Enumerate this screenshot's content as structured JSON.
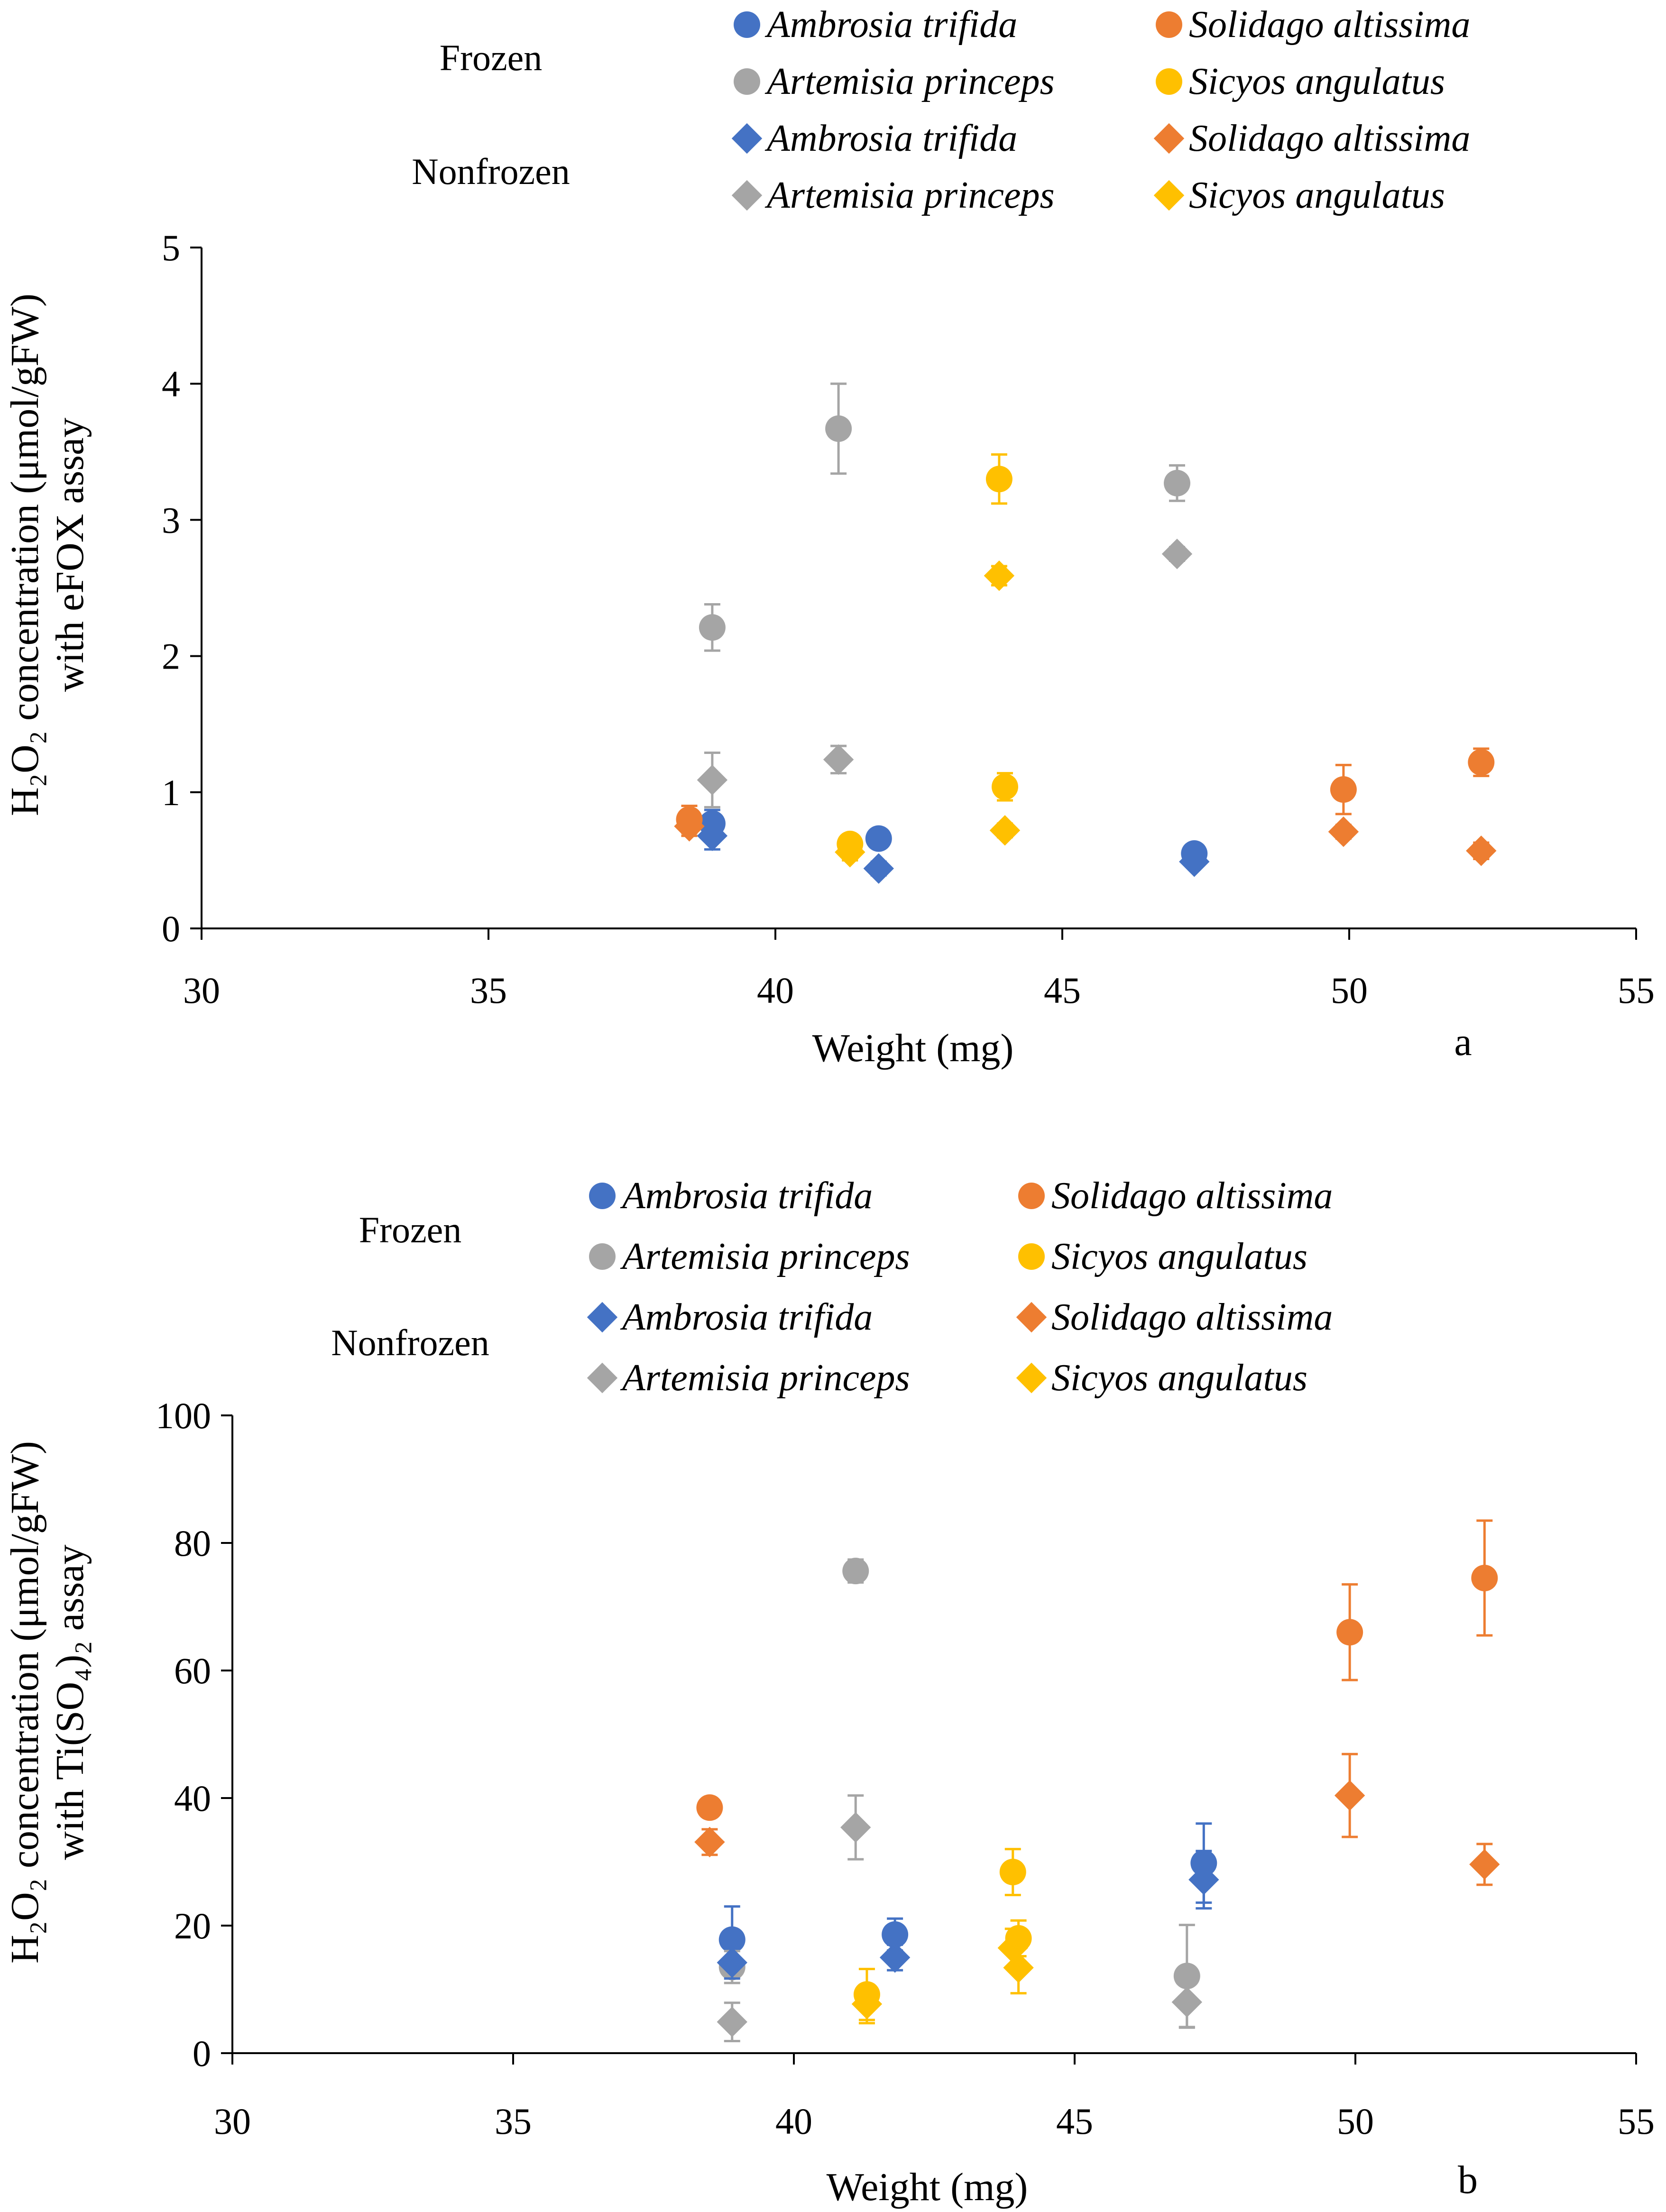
{
  "colors": {
    "Ambrosia trifida": "#4472C4",
    "Solidago altissima": "#ED7D31",
    "Artemisia princeps": "#A5A5A5",
    "Sicyos angulatus": "#FFC000"
  },
  "chart_data": [
    {
      "type": "scatter",
      "panel": "a",
      "xlabel": "Weight (mg)",
      "ylabel_line1": "H₂O₂ concentration (μmol/gFW)",
      "ylabel_line2": "with eFOX assay",
      "xlim": [
        30,
        55
      ],
      "ylim": [
        0,
        5
      ],
      "xticks": [
        30,
        35,
        40,
        45,
        50,
        55
      ],
      "yticks": [
        0,
        1,
        2,
        3,
        4,
        5
      ],
      "legend": {
        "groups": [
          "Frozen",
          "Nonfrozen"
        ],
        "entries": [
          {
            "label": "Ambrosia trifida",
            "group": "Frozen",
            "marker": "circle"
          },
          {
            "label": "Solidago altissima",
            "group": "Frozen",
            "marker": "circle"
          },
          {
            "label": "Artemisia princeps",
            "group": "Frozen",
            "marker": "circle"
          },
          {
            "label": "Sicyos angulatus",
            "group": "Frozen",
            "marker": "circle"
          },
          {
            "label": "Ambrosia trifida",
            "group": "Nonfrozen",
            "marker": "diamond"
          },
          {
            "label": "Solidago altissima",
            "group": "Nonfrozen",
            "marker": "diamond"
          },
          {
            "label": "Artemisia princeps",
            "group": "Nonfrozen",
            "marker": "diamond"
          },
          {
            "label": "Sicyos angulatus",
            "group": "Nonfrozen",
            "marker": "diamond"
          }
        ]
      },
      "series": [
        {
          "name": "Ambrosia trifida",
          "group": "Frozen",
          "marker": "circle",
          "points": [
            [
              38.9,
              0.77,
              0.1
            ],
            [
              41.8,
              0.66,
              0.06
            ],
            [
              47.3,
              0.55,
              0.05
            ]
          ]
        },
        {
          "name": "Artemisia princeps",
          "group": "Frozen",
          "marker": "circle",
          "points": [
            [
              38.9,
              2.21,
              0.17
            ],
            [
              41.1,
              3.67,
              0.33
            ],
            [
              47.0,
              3.27,
              0.13
            ]
          ]
        },
        {
          "name": "Solidago altissima",
          "group": "Frozen",
          "marker": "circle",
          "points": [
            [
              38.5,
              0.8,
              0.1
            ],
            [
              49.9,
              1.02,
              0.18
            ],
            [
              52.3,
              1.22,
              0.1
            ]
          ]
        },
        {
          "name": "Sicyos angulatus",
          "group": "Frozen",
          "marker": "circle",
          "points": [
            [
              41.3,
              0.62,
              0.06
            ],
            [
              43.9,
              3.3,
              0.18
            ],
            [
              44.0,
              1.04,
              0.1
            ]
          ]
        },
        {
          "name": "Ambrosia trifida",
          "group": "Nonfrozen",
          "marker": "diamond",
          "points": [
            [
              38.9,
              0.68,
              0.1
            ],
            [
              41.8,
              0.44,
              0.05
            ],
            [
              47.3,
              0.49,
              0.04
            ]
          ]
        },
        {
          "name": "Artemisia princeps",
          "group": "Nonfrozen",
          "marker": "diamond",
          "points": [
            [
              38.9,
              1.09,
              0.2
            ],
            [
              41.1,
              1.24,
              0.1
            ],
            [
              47.0,
              2.75,
              0.05
            ]
          ]
        },
        {
          "name": "Solidago altissima",
          "group": "Nonfrozen",
          "marker": "diamond",
          "points": [
            [
              38.5,
              0.75,
              0.07
            ],
            [
              49.9,
              0.71,
              0.05
            ],
            [
              52.3,
              0.57,
              0.06
            ]
          ]
        },
        {
          "name": "Sicyos angulatus",
          "group": "Nonfrozen",
          "marker": "diamond",
          "points": [
            [
              41.3,
              0.56,
              0.06
            ],
            [
              43.9,
              2.59,
              0.07
            ],
            [
              44.0,
              0.72,
              0.05
            ]
          ]
        }
      ]
    },
    {
      "type": "scatter",
      "panel": "b",
      "xlabel": "Weight (mg)",
      "ylabel_line1": "H₂O₂ concentration (μmol/gFW)",
      "ylabel_line2": "with Ti(SO₄)₂ assay",
      "xlim": [
        30,
        55
      ],
      "ylim": [
        0,
        100
      ],
      "xticks": [
        30,
        35,
        40,
        45,
        50,
        55
      ],
      "yticks": [
        0,
        20,
        40,
        60,
        80,
        100
      ],
      "legend": {
        "groups": [
          "Frozen",
          "Nonfrozen"
        ],
        "entries": [
          {
            "label": "Ambrosia trifida",
            "group": "Frozen",
            "marker": "circle"
          },
          {
            "label": "Solidago altissima",
            "group": "Frozen",
            "marker": "circle"
          },
          {
            "label": "Artemisia princeps",
            "group": "Frozen",
            "marker": "circle"
          },
          {
            "label": "Sicyos angulatus",
            "group": "Frozen",
            "marker": "circle"
          },
          {
            "label": "Ambrosia trifida",
            "group": "Nonfrozen",
            "marker": "diamond"
          },
          {
            "label": "Solidago altissima",
            "group": "Nonfrozen",
            "marker": "diamond"
          },
          {
            "label": "Artemisia princeps",
            "group": "Nonfrozen",
            "marker": "diamond"
          },
          {
            "label": "Sicyos angulatus",
            "group": "Nonfrozen",
            "marker": "diamond"
          }
        ]
      },
      "series": [
        {
          "name": "Ambrosia trifida",
          "group": "Frozen",
          "marker": "circle",
          "points": [
            [
              38.9,
              17.8,
              5.2
            ],
            [
              41.8,
              18.6,
              2.5
            ],
            [
              47.3,
              29.8,
              6.2
            ]
          ]
        },
        {
          "name": "Artemisia princeps",
          "group": "Frozen",
          "marker": "circle",
          "points": [
            [
              38.9,
              13.5,
              2.5
            ],
            [
              41.1,
              75.6,
              1.8
            ],
            [
              47.0,
              12.1,
              8.0
            ]
          ]
        },
        {
          "name": "Solidago altissima",
          "group": "Frozen",
          "marker": "circle",
          "points": [
            [
              38.5,
              38.5,
              1.0
            ],
            [
              49.9,
              66.0,
              7.5
            ],
            [
              52.3,
              74.5,
              9.0
            ]
          ]
        },
        {
          "name": "Sicyos angulatus",
          "group": "Frozen",
          "marker": "circle",
          "points": [
            [
              41.3,
              9.2,
              4.0
            ],
            [
              43.9,
              28.4,
              3.6
            ],
            [
              44.0,
              18.0,
              2.8
            ]
          ]
        },
        {
          "name": "Ambrosia trifida",
          "group": "Nonfrozen",
          "marker": "diamond",
          "points": [
            [
              38.9,
              14.2,
              2.5
            ],
            [
              41.8,
              15.0,
              2.0
            ],
            [
              47.3,
              27.2,
              4.5
            ]
          ]
        },
        {
          "name": "Artemisia princeps",
          "group": "Nonfrozen",
          "marker": "diamond",
          "points": [
            [
              38.9,
              4.9,
              3.0
            ],
            [
              41.1,
              35.4,
              5.0
            ],
            [
              47.0,
              8.0,
              4.0
            ]
          ]
        },
        {
          "name": "Solidago altissima",
          "group": "Nonfrozen",
          "marker": "diamond",
          "points": [
            [
              38.5,
              33.1,
              2.0
            ],
            [
              49.9,
              40.4,
              6.5
            ],
            [
              52.3,
              29.6,
              3.2
            ]
          ]
        },
        {
          "name": "Sicyos angulatus",
          "group": "Nonfrozen",
          "marker": "diamond",
          "points": [
            [
              41.3,
              7.7,
              3.0
            ],
            [
              43.9,
              16.5,
              3.0
            ],
            [
              44.0,
              13.4,
              4.0
            ]
          ]
        }
      ]
    }
  ]
}
